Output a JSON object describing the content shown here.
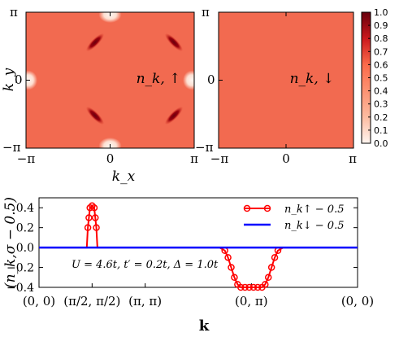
{
  "chart_data": [
    {
      "type": "heatmap",
      "panel": "n_k_up",
      "label": "n_k, ↑",
      "x_ticks": [
        "−π",
        "0",
        "π"
      ],
      "y_ticks": [
        "π",
        "0",
        "−π"
      ],
      "xlabel": "k_x",
      "ylabel": "k_y",
      "xlim": [
        "−π",
        "π"
      ],
      "ylim": [
        "−π",
        "π"
      ],
      "background_value": 0.65,
      "features": [
        {
          "kind": "dark-arc",
          "at": "(−π/2, π/2)",
          "value": 0.95
        },
        {
          "kind": "dark-arc",
          "at": "(π/2, π/2)",
          "value": 0.95
        },
        {
          "kind": "dark-arc",
          "at": "(−π/2, −π/2)",
          "value": 0.95
        },
        {
          "kind": "dark-arc",
          "at": "(π/2, −π/2)",
          "value": 0.95
        },
        {
          "kind": "light-spot",
          "at": "(0, π)",
          "value": 0.2
        },
        {
          "kind": "light-spot",
          "at": "(0, −π)",
          "value": 0.2
        },
        {
          "kind": "light-spot",
          "at": "(−π, 0)",
          "value": 0.2
        },
        {
          "kind": "light-spot",
          "at": "(π, 0)",
          "value": 0.2
        }
      ]
    },
    {
      "type": "heatmap",
      "panel": "n_k_down",
      "label": "n_k, ↓",
      "x_ticks": [
        "−π",
        "0",
        "π"
      ],
      "y_ticks": [
        "π",
        "0",
        "−π"
      ],
      "background_value": 0.65
    },
    {
      "type": "colorbar",
      "range": [
        0.0,
        1.0
      ],
      "ticks": [
        "1.0",
        "0.9",
        "0.8",
        "0.7",
        "0.6",
        "0.5",
        "0.4",
        "0.3",
        "0.2",
        "0.1",
        "0.0"
      ],
      "colors": {
        "low": "#fff5f0",
        "mid": "#fb6a4a",
        "high": "#67000d"
      }
    },
    {
      "type": "line",
      "x_ticks": [
        "(0, 0)",
        "(π/2, π/2)",
        "(π, π)",
        "(0, π)",
        "(0, 0)"
      ],
      "x_tick_positions": [
        0,
        0.5,
        1,
        2,
        3
      ],
      "xlim": [
        0,
        3
      ],
      "ylim": [
        -0.4,
        0.5
      ],
      "y_ticks": [
        "0.4",
        "0.2",
        "0.0",
        "−0.2",
        "−0.4"
      ],
      "y_tick_values": [
        0.4,
        0.2,
        0.0,
        -0.2,
        -0.4
      ],
      "xlabel": "k",
      "ylabel": "(n_k,σ − 0.5)",
      "annotation": "U = 4.6t, t′ = 0.2t, Δ = 1.0t",
      "series": [
        {
          "name": "n_k↑ − 0.5",
          "color": "#ff0000",
          "marker": "circle",
          "points": [
            [
              0.0,
              0.0
            ],
            [
              0.4,
              0.0
            ],
            [
              0.45,
              0.0
            ],
            [
              0.46,
              0.2
            ],
            [
              0.47,
              0.3
            ],
            [
              0.48,
              0.4
            ],
            [
              0.5,
              0.42
            ],
            [
              0.52,
              0.4
            ],
            [
              0.53,
              0.3
            ],
            [
              0.54,
              0.2
            ],
            [
              0.55,
              0.0
            ],
            [
              0.6,
              0.0
            ],
            [
              1.0,
              0.0
            ],
            [
              1.5,
              0.0
            ],
            [
              1.7,
              0.0
            ],
            [
              1.75,
              -0.03
            ],
            [
              1.78,
              -0.1
            ],
            [
              1.81,
              -0.2
            ],
            [
              1.84,
              -0.3
            ],
            [
              1.87,
              -0.37
            ],
            [
              1.9,
              -0.4
            ],
            [
              1.94,
              -0.4
            ],
            [
              1.98,
              -0.4
            ],
            [
              2.02,
              -0.4
            ],
            [
              2.06,
              -0.4
            ],
            [
              2.1,
              -0.4
            ],
            [
              2.13,
              -0.37
            ],
            [
              2.16,
              -0.3
            ],
            [
              2.19,
              -0.2
            ],
            [
              2.22,
              -0.1
            ],
            [
              2.25,
              -0.03
            ],
            [
              2.3,
              0.0
            ],
            [
              2.6,
              0.0
            ],
            [
              3.0,
              0.0
            ]
          ]
        },
        {
          "name": "n_k↓ − 0.5",
          "color": "#0000ff",
          "marker": "none",
          "points": [
            [
              0.0,
              0.0
            ],
            [
              3.0,
              0.0
            ]
          ]
        }
      ]
    }
  ]
}
